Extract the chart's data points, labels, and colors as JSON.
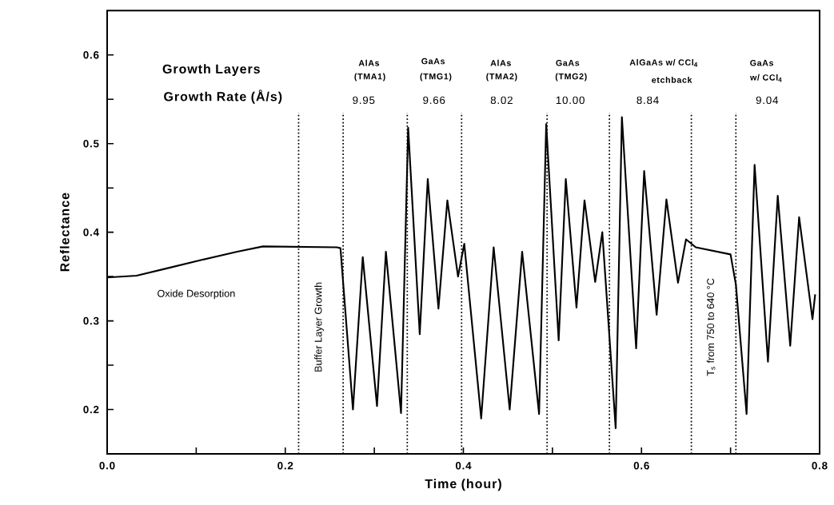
{
  "chart_data": {
    "type": "line",
    "xlabel": "Time (hour)",
    "ylabel": "Reflectance",
    "x": [
      0,
      0.033,
      0.066,
      0.107,
      0.146,
      0.175,
      0.258,
      0.262,
      0.276,
      0.287,
      0.303,
      0.313,
      0.33,
      0.338,
      0.351,
      0.36,
      0.372,
      0.382,
      0.394,
      0.401,
      0.42,
      0.434,
      0.452,
      0.466,
      0.485,
      0.493,
      0.507,
      0.515,
      0.527,
      0.536,
      0.548,
      0.556,
      0.571,
      0.578,
      0.594,
      0.603,
      0.617,
      0.628,
      0.641,
      0.65,
      0.661,
      0.7,
      0.706,
      0.718,
      0.727,
      0.742,
      0.753,
      0.767,
      0.777,
      0.792,
      0.795
    ],
    "values": [
      0.349,
      0.351,
      0.359,
      0.369,
      0.378,
      0.384,
      0.383,
      0.382,
      0.2,
      0.372,
      0.204,
      0.378,
      0.196,
      0.518,
      0.285,
      0.46,
      0.314,
      0.436,
      0.35,
      0.387,
      0.19,
      0.383,
      0.2,
      0.378,
      0.195,
      0.522,
      0.278,
      0.46,
      0.315,
      0.436,
      0.344,
      0.4,
      0.179,
      0.53,
      0.269,
      0.469,
      0.307,
      0.437,
      0.343,
      0.392,
      0.383,
      0.375,
      0.341,
      0.195,
      0.476,
      0.254,
      0.441,
      0.272,
      0.417,
      0.302,
      0.33
    ],
    "color": "#000000",
    "marker": "none",
    "line_style": "solid",
    "xlim": [
      0,
      0.8
    ],
    "ylim": [
      0.15,
      0.65
    ],
    "xticks": [
      {
        "value": 0,
        "label": "0.0"
      },
      {
        "value": 0.1,
        "label": null
      },
      0.2,
      {
        "value": 0.3,
        "label": null
      },
      0.4,
      {
        "value": 0.5,
        "label": null
      },
      0.6,
      {
        "value": 0.7,
        "label": null
      },
      0.8
    ],
    "yticks": [
      0.2,
      {
        "value": 0.25,
        "label": null
      },
      0.3,
      {
        "value": 0.35,
        "label": null
      },
      0.4,
      {
        "value": 0.45,
        "label": null
      },
      0.5,
      {
        "value": 0.55,
        "label": null
      },
      0.6
    ],
    "ref_lines": [
      {
        "axis": "x",
        "value": 0.215
      },
      {
        "axis": "x",
        "value": 0.265
      },
      {
        "axis": "x",
        "value": 0.337
      },
      {
        "axis": "x",
        "value": 0.398
      },
      {
        "axis": "x",
        "value": 0.494
      },
      {
        "axis": "x",
        "value": 0.564
      },
      {
        "axis": "x",
        "value": 0.656
      },
      {
        "axis": "x",
        "value": 0.706
      }
    ],
    "annotations": [
      "Growth Layers",
      "Growth Rate (Å/s)",
      "AlAs",
      "(TMA1)",
      "9.95",
      "GaAs",
      "(TMG1)",
      "9.66",
      "AlAs",
      "(TMA2)",
      "8.02",
      "GaAs",
      "(TMG2)",
      "10.00",
      "AlGaAs w/ CCl$_{4}$",
      "etchback",
      "8.84",
      "GaAs",
      "w/ CCl$_{4}$",
      "9.04",
      "Oxide Desorption",
      "Buffer Layer Growth",
      "T$_{s}$ from 750 to 640 °C"
    ]
  }
}
